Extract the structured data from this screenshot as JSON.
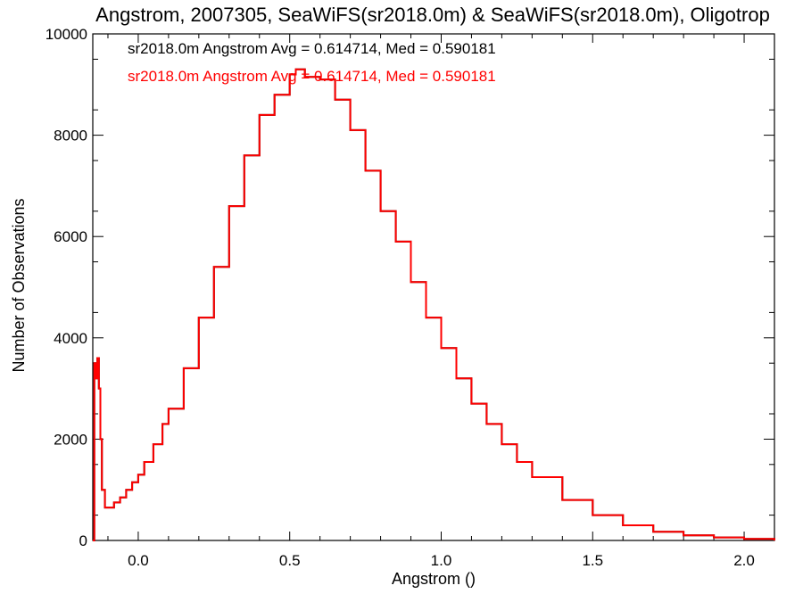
{
  "chart_data": {
    "type": "line",
    "title": "Angstrom, 2007305, SeaWiFS(sr2018.0m) & SeaWiFS(sr2018.0m), Oligotrop",
    "xlabel": "Angstrom ()",
    "ylabel": "Number of Observations",
    "xlim": [
      -0.15,
      2.1
    ],
    "ylim": [
      0,
      10000
    ],
    "xticks": [
      0.0,
      0.5,
      1.0,
      1.5,
      2.0
    ],
    "xtick_labels": [
      "0.0",
      "0.5",
      "1.0",
      "1.5",
      "2.0"
    ],
    "yticks": [
      0,
      2000,
      4000,
      6000,
      8000,
      10000
    ],
    "ytick_labels": [
      "0",
      "2000",
      "4000",
      "6000",
      "8000",
      "10000"
    ],
    "grid": false,
    "annotations": [
      {
        "text": "sr2018.0m Angstrom Avg = 0.614714, Med = 0.590181",
        "color": "#000000"
      },
      {
        "text": "sr2018.0m Angstrom Avg = 0.614714, Med = 0.590181",
        "color": "#ff0000"
      }
    ],
    "series": [
      {
        "color": "#000000",
        "x": [
          -0.15,
          -0.145,
          -0.14,
          -0.135,
          -0.13,
          -0.125,
          -0.12,
          -0.11,
          -0.1,
          -0.08,
          -0.06,
          -0.04,
          -0.02,
          0.0,
          0.02,
          0.05,
          0.08,
          0.1,
          0.15,
          0.2,
          0.25,
          0.3,
          0.35,
          0.4,
          0.45,
          0.5,
          0.52,
          0.55,
          0.6,
          0.65,
          0.7,
          0.75,
          0.8,
          0.85,
          0.9,
          0.95,
          1.0,
          1.05,
          1.1,
          1.15,
          1.2,
          1.25,
          1.3,
          1.4,
          1.5,
          1.6,
          1.7,
          1.8,
          1.9,
          2.0,
          2.1
        ],
        "y": [
          0,
          3500,
          3200,
          3600,
          3000,
          2000,
          1000,
          650,
          650,
          750,
          850,
          1000,
          1150,
          1300,
          1550,
          1900,
          2300,
          2600,
          3400,
          4400,
          5400,
          6600,
          7600,
          8400,
          8800,
          9200,
          9300,
          9150,
          9100,
          8700,
          8100,
          7300,
          6500,
          5900,
          5100,
          4400,
          3800,
          3200,
          2700,
          2300,
          1900,
          1550,
          1250,
          800,
          500,
          300,
          170,
          100,
          60,
          30,
          0
        ]
      },
      {
        "color": "#ff0000",
        "x": [
          -0.15,
          -0.145,
          -0.14,
          -0.135,
          -0.13,
          -0.125,
          -0.12,
          -0.11,
          -0.1,
          -0.08,
          -0.06,
          -0.04,
          -0.02,
          0.0,
          0.02,
          0.05,
          0.08,
          0.1,
          0.15,
          0.2,
          0.25,
          0.3,
          0.35,
          0.4,
          0.45,
          0.5,
          0.52,
          0.55,
          0.6,
          0.65,
          0.7,
          0.75,
          0.8,
          0.85,
          0.9,
          0.95,
          1.0,
          1.05,
          1.1,
          1.15,
          1.2,
          1.25,
          1.3,
          1.4,
          1.5,
          1.6,
          1.7,
          1.8,
          1.9,
          2.0,
          2.1
        ],
        "y": [
          0,
          3500,
          3200,
          3600,
          3000,
          2000,
          1000,
          650,
          650,
          750,
          850,
          1000,
          1150,
          1300,
          1550,
          1900,
          2300,
          2600,
          3400,
          4400,
          5400,
          6600,
          7600,
          8400,
          8800,
          9200,
          9300,
          9150,
          9100,
          8700,
          8100,
          7300,
          6500,
          5900,
          5100,
          4400,
          3800,
          3200,
          2700,
          2300,
          1900,
          1550,
          1250,
          800,
          500,
          300,
          170,
          100,
          60,
          30,
          0
        ]
      }
    ]
  }
}
